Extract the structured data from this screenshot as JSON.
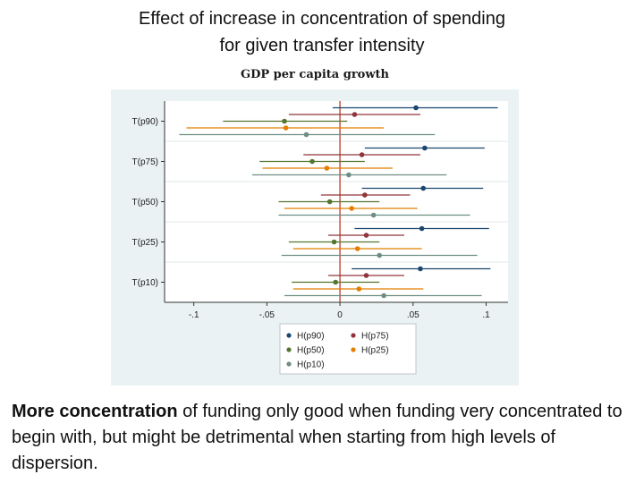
{
  "slide": {
    "title_line1": "Effect of increase in concentration of spending",
    "title_line2": "for given transfer intensity",
    "caption_bold": "More concentration",
    "caption_rest": " of funding only good when funding very concentrated to begin with, but might be detrimental when starting from high levels of dispersion."
  },
  "chart_data": {
    "type": "coefficient-plot",
    "title": "GDP per capita growth",
    "xlim": [
      -0.12,
      0.115
    ],
    "xticks": [
      -0.1,
      -0.05,
      0,
      0.05,
      0.1
    ],
    "xtick_labels": [
      "-.1",
      "-.05",
      "0",
      ".05",
      ".1"
    ],
    "reference_line_x": 0,
    "reference_line_color": "#c0392b",
    "categories": [
      "T(p90)",
      "T(p75)",
      "T(p50)",
      "T(p25)",
      "T(p10)"
    ],
    "series": [
      {
        "name": "H(p90)",
        "color": "#1a476f",
        "points": [
          0.052,
          0.058,
          0.057,
          0.056,
          0.055
        ],
        "ci_low": [
          -0.005,
          0.017,
          0.015,
          0.01,
          0.008
        ],
        "ci_high": [
          0.108,
          0.099,
          0.098,
          0.102,
          0.103
        ]
      },
      {
        "name": "H(p75)",
        "color": "#90353b",
        "points": [
          0.01,
          0.015,
          0.017,
          0.018,
          0.018
        ],
        "ci_low": [
          -0.035,
          -0.025,
          -0.013,
          -0.008,
          -0.008
        ],
        "ci_high": [
          0.055,
          0.055,
          0.048,
          0.044,
          0.044
        ]
      },
      {
        "name": "H(p50)",
        "color": "#55752f",
        "points": [
          -0.038,
          -0.019,
          -0.007,
          -0.004,
          -0.003
        ],
        "ci_low": [
          -0.08,
          -0.055,
          -0.042,
          -0.035,
          -0.033
        ],
        "ci_high": [
          0.005,
          0.017,
          0.027,
          0.027,
          0.027
        ]
      },
      {
        "name": "H(p25)",
        "color": "#e37e00",
        "points": [
          -0.037,
          -0.009,
          0.008,
          0.012,
          0.013
        ],
        "ci_low": [
          -0.105,
          -0.053,
          -0.038,
          -0.032,
          -0.032
        ],
        "ci_high": [
          0.03,
          0.036,
          0.053,
          0.056,
          0.057
        ]
      },
      {
        "name": "H(p10)",
        "color": "#6e8e84",
        "points": [
          -0.023,
          0.006,
          0.023,
          0.027,
          0.03
        ],
        "ci_low": [
          -0.11,
          -0.06,
          -0.042,
          -0.04,
          -0.038
        ],
        "ci_high": [
          0.065,
          0.073,
          0.089,
          0.094,
          0.097
        ]
      }
    ],
    "legend": {
      "placement": "bottom",
      "entries": [
        "H(p90)",
        "H(p75)",
        "H(p50)",
        "H(p25)",
        "H(p10)"
      ]
    }
  }
}
